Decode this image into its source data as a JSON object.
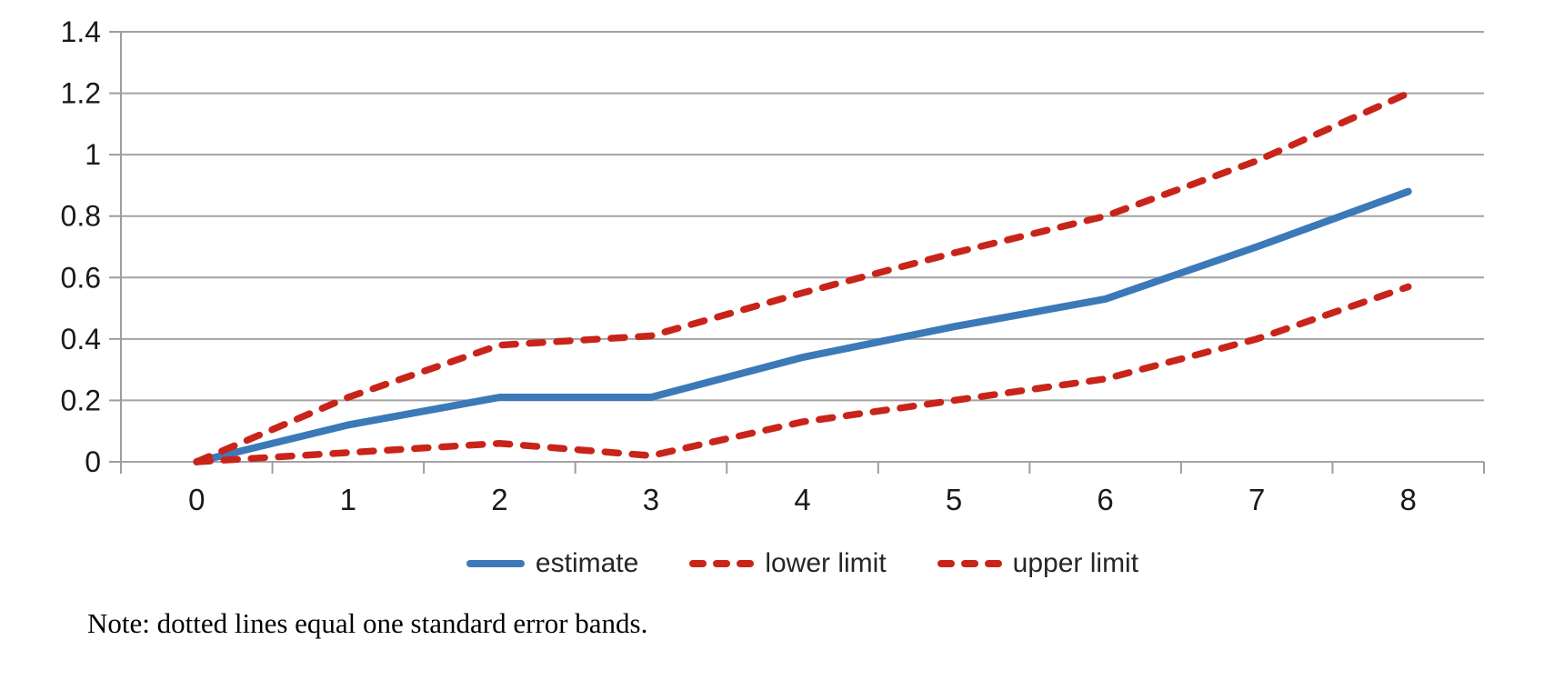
{
  "chart_data": {
    "type": "line",
    "categories": [
      "0",
      "1",
      "2",
      "3",
      "4",
      "5",
      "6",
      "7",
      "8"
    ],
    "series": [
      {
        "name": "estimate",
        "style": "solid",
        "color": "#3c79b8",
        "values": [
          0,
          0.12,
          0.21,
          0.21,
          0.34,
          0.44,
          0.53,
          0.7,
          0.88
        ]
      },
      {
        "name": "lower limit",
        "style": "dashed",
        "color": "#c9241a",
        "values": [
          0,
          0.03,
          0.06,
          0.02,
          0.13,
          0.2,
          0.27,
          0.4,
          0.57
        ]
      },
      {
        "name": "upper limit",
        "style": "dashed",
        "color": "#c9241a",
        "values": [
          0,
          0.21,
          0.38,
          0.41,
          0.55,
          0.68,
          0.8,
          0.98,
          1.2
        ]
      }
    ],
    "title": "",
    "xlabel": "",
    "ylabel": "",
    "ylim": [
      0,
      1.4
    ],
    "y_ticks": [
      "0",
      "0.2",
      "0.4",
      "0.6",
      "0.8",
      "1",
      "1.2",
      "1.4"
    ],
    "grid": "horizontal",
    "legend_position": "bottom",
    "axis_color": "#9d9d9d",
    "grid_color": "#a3a3a3",
    "tick_label_color": "#191919"
  },
  "note": {
    "text": "Note: dotted lines equal one standard error bands."
  }
}
